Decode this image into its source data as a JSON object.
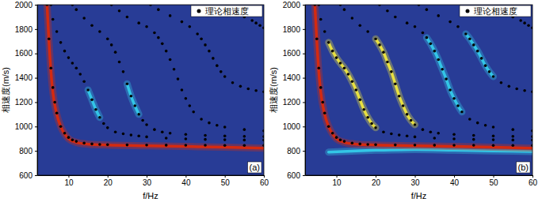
{
  "chart_data": [
    {
      "type": "scatter",
      "panel_label": "(a)",
      "xlabel": "f/Hz",
      "ylabel": "相速度(m/s)",
      "xlim": [
        2,
        60
      ],
      "ylim": [
        600,
        2000
      ],
      "xticks": [
        10,
        20,
        30,
        40,
        50,
        60
      ],
      "yticks": [
        600,
        800,
        1000,
        1200,
        1400,
        1600,
        1800,
        2000
      ],
      "grid": false,
      "legend": "upper right",
      "series": [
        {
          "type": "line",
          "color": "#d42a10",
          "x": [
            4.5,
            5,
            5.5,
            6,
            7,
            8,
            9,
            10,
            12,
            15,
            20,
            30,
            40,
            50,
            60
          ],
          "values": [
            2000,
            1700,
            1450,
            1280,
            1100,
            1000,
            940,
            900,
            870,
            855,
            848,
            842,
            836,
            830,
            822
          ]
        },
        {
          "type": "line",
          "color": "#33c6e6",
          "x": [
            15,
            16,
            17,
            18
          ],
          "values": [
            1300,
            1220,
            1140,
            1075
          ]
        },
        {
          "type": "line",
          "color": "#33c6e6",
          "x": [
            25,
            26,
            27,
            28
          ],
          "values": [
            1350,
            1250,
            1170,
            1100
          ]
        },
        {
          "type": "scatter",
          "name": "理论相速度",
          "color": "#000000",
          "marker": "circle",
          "x": [
            4.5,
            5,
            5.5,
            6,
            6.5,
            7,
            8,
            9,
            10,
            11,
            12,
            14,
            16,
            18,
            20,
            25,
            30,
            35,
            40,
            45,
            50,
            55,
            60,
            null,
            5.5,
            6,
            7,
            8,
            9,
            10,
            11,
            12,
            13,
            14,
            15,
            16,
            17,
            18,
            19,
            20,
            22,
            24,
            26,
            28,
            30,
            35,
            40,
            45,
            50,
            55,
            60,
            null,
            11,
            12,
            14,
            16,
            18,
            20,
            21,
            22,
            23,
            24,
            25,
            26,
            27,
            28,
            29,
            30,
            32,
            34,
            36,
            40,
            45,
            50,
            55,
            60,
            null,
            21,
            23,
            25,
            28,
            30,
            32,
            33,
            34,
            35,
            36,
            37,
            38,
            39,
            40,
            41,
            42,
            44,
            46,
            48,
            50,
            55,
            60,
            null,
            31,
            33,
            36,
            39,
            41,
            43,
            44,
            45,
            46,
            47,
            48,
            49,
            50,
            52,
            54,
            56,
            58,
            60,
            null,
            55,
            57,
            58,
            59,
            60
          ],
          "values": [
            2000,
            1720,
            1480,
            1320,
            1200,
            1110,
            1000,
            945,
            910,
            890,
            878,
            864,
            857,
            853,
            851,
            849,
            848,
            847,
            846,
            846,
            845,
            845,
            845,
            null,
            2000,
            1880,
            1780,
            1690,
            1620,
            1565,
            1520,
            1480,
            1430,
            1370,
            1300,
            1220,
            1140,
            1075,
            1025,
            990,
            955,
            940,
            930,
            922,
            915,
            905,
            898,
            894,
            891,
            889,
            888,
            null,
            2000,
            1960,
            1890,
            1830,
            1780,
            1720,
            1670,
            1610,
            1530,
            1450,
            1350,
            1250,
            1170,
            1100,
            1050,
            1015,
            975,
            955,
            945,
            935,
            927,
            922,
            919,
            917,
            null,
            2000,
            1950,
            1900,
            1850,
            1820,
            1770,
            1730,
            1680,
            1620,
            1550,
            1470,
            1390,
            1300,
            1230,
            1170,
            1120,
            1060,
            1030,
            1010,
            995,
            975,
            965,
            null,
            2000,
            1960,
            1910,
            1860,
            1820,
            1760,
            1720,
            1670,
            1620,
            1560,
            1500,
            1450,
            1410,
            1360,
            1330,
            1310,
            1295,
            1285,
            null,
            1900,
            1870,
            1850,
            1830,
            1810
          ]
        }
      ]
    },
    {
      "type": "scatter",
      "panel_label": "(b)",
      "xlabel": "f/Hz",
      "ylabel": "相速度(m/s)",
      "xlim": [
        2,
        60
      ],
      "ylim": [
        600,
        2000
      ],
      "xticks": [
        10,
        20,
        30,
        40,
        50,
        60
      ],
      "yticks": [
        600,
        800,
        1000,
        1200,
        1400,
        1600,
        1800,
        2000
      ],
      "grid": false,
      "legend": "upper right",
      "series": [
        {
          "type": "line",
          "color": "#33c6e6",
          "x": [
            8,
            15,
            20,
            30,
            40,
            50,
            60
          ],
          "values": [
            790,
            800,
            805,
            810,
            805,
            800,
            795
          ]
        },
        {
          "type": "line",
          "color": "#d42a10",
          "x": [
            4.5,
            5,
            5.5,
            6,
            7,
            8,
            9,
            10,
            12,
            15,
            20,
            30,
            40,
            50,
            60
          ],
          "values": [
            2000,
            1700,
            1450,
            1280,
            1100,
            1000,
            940,
            900,
            870,
            855,
            848,
            842,
            836,
            830,
            822
          ]
        },
        {
          "type": "line",
          "color": "#e8e040",
          "x": [
            8,
            9,
            10,
            11,
            12,
            13,
            14,
            15,
            16,
            17,
            18,
            19,
            20
          ],
          "values": [
            1690,
            1620,
            1565,
            1520,
            1480,
            1430,
            1370,
            1300,
            1220,
            1140,
            1075,
            1025,
            990
          ]
        },
        {
          "type": "line",
          "color": "#e8e040",
          "x": [
            20,
            21,
            22,
            23,
            24,
            25,
            26,
            27,
            28,
            29,
            30
          ],
          "values": [
            1720,
            1670,
            1610,
            1530,
            1450,
            1350,
            1250,
            1170,
            1100,
            1050,
            1015
          ]
        },
        {
          "type": "line",
          "color": "#33c6e6",
          "x": [
            33,
            34,
            35,
            36,
            37,
            38,
            39,
            40,
            41,
            42
          ],
          "values": [
            1730,
            1680,
            1620,
            1550,
            1470,
            1390,
            1300,
            1230,
            1170,
            1120
          ]
        },
        {
          "type": "line",
          "color": "#33c6e6",
          "x": [
            43,
            44,
            45,
            46,
            47,
            48,
            49,
            50
          ],
          "values": [
            1760,
            1720,
            1670,
            1620,
            1560,
            1500,
            1450,
            1410
          ]
        },
        {
          "type": "scatter",
          "name": "理论相速度",
          "color": "#000000",
          "marker": "circle",
          "x": [
            4.5,
            5,
            5.5,
            6,
            6.5,
            7,
            8,
            9,
            10,
            11,
            12,
            14,
            16,
            18,
            20,
            25,
            30,
            35,
            40,
            45,
            50,
            55,
            60,
            null,
            5.5,
            6,
            7,
            8,
            9,
            10,
            11,
            12,
            13,
            14,
            15,
            16,
            17,
            18,
            19,
            20,
            22,
            24,
            26,
            28,
            30,
            35,
            40,
            45,
            50,
            55,
            60,
            null,
            11,
            12,
            14,
            16,
            18,
            20,
            21,
            22,
            23,
            24,
            25,
            26,
            27,
            28,
            29,
            30,
            32,
            34,
            36,
            40,
            45,
            50,
            55,
            60,
            null,
            21,
            23,
            25,
            28,
            30,
            32,
            33,
            34,
            35,
            36,
            37,
            38,
            39,
            40,
            41,
            42,
            44,
            46,
            48,
            50,
            55,
            60,
            null,
            31,
            33,
            36,
            39,
            41,
            43,
            44,
            45,
            46,
            47,
            48,
            49,
            50,
            52,
            54,
            56,
            58,
            60,
            null,
            55,
            57,
            58,
            59,
            60
          ],
          "values": [
            2000,
            1720,
            1480,
            1320,
            1200,
            1110,
            1000,
            945,
            910,
            890,
            878,
            864,
            857,
            853,
            851,
            849,
            848,
            847,
            846,
            846,
            845,
            845,
            845,
            null,
            2000,
            1880,
            1780,
            1690,
            1620,
            1565,
            1520,
            1480,
            1430,
            1370,
            1300,
            1220,
            1140,
            1075,
            1025,
            990,
            955,
            940,
            930,
            922,
            915,
            905,
            898,
            894,
            891,
            889,
            888,
            null,
            2000,
            1960,
            1890,
            1830,
            1780,
            1720,
            1670,
            1610,
            1530,
            1450,
            1350,
            1250,
            1170,
            1100,
            1050,
            1015,
            975,
            955,
            945,
            935,
            927,
            922,
            919,
            917,
            null,
            2000,
            1950,
            1900,
            1850,
            1820,
            1770,
            1730,
            1680,
            1620,
            1550,
            1470,
            1390,
            1300,
            1230,
            1170,
            1120,
            1060,
            1030,
            1010,
            995,
            975,
            965,
            null,
            2000,
            1960,
            1910,
            1860,
            1820,
            1760,
            1720,
            1670,
            1620,
            1560,
            1500,
            1450,
            1410,
            1360,
            1330,
            1310,
            1295,
            1285,
            null,
            1900,
            1870,
            1850,
            1830,
            1810
          ]
        }
      ]
    }
  ]
}
